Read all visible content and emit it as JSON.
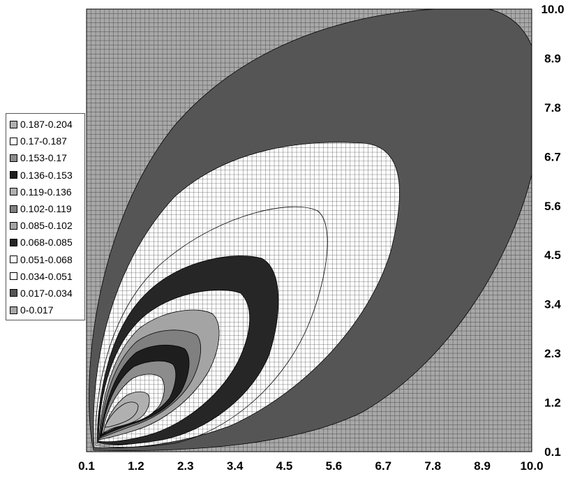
{
  "chart_data": {
    "type": "contour",
    "title": "",
    "xlabel": "",
    "ylabel": "",
    "x_ticks": [
      "0.1",
      "1.2",
      "2.3",
      "3.4",
      "4.5",
      "5.6",
      "6.7",
      "7.8",
      "8.9",
      "10.0"
    ],
    "y_ticks": [
      "10.0",
      "8.9",
      "7.8",
      "6.7",
      "5.6",
      "4.5",
      "3.4",
      "2.3",
      "1.2",
      "0.1"
    ],
    "xlim": [
      0.1,
      10.0
    ],
    "ylim": [
      0.1,
      10.0
    ],
    "y_axis_side": "right",
    "grid": true,
    "legend_position": "left",
    "series": [
      {
        "name": "0.187-0.204",
        "color": "#b0b0b0"
      },
      {
        "name": "0.17-0.187",
        "color": "#ffffff"
      },
      {
        "name": "0.153-0.17",
        "color": "#8c8c8c"
      },
      {
        "name": "0.136-0.153",
        "color": "#1e1e1e"
      },
      {
        "name": "0.119-0.136",
        "color": "#b0b0b0"
      },
      {
        "name": "0.102-0.119",
        "color": "#808080"
      },
      {
        "name": "0.085-0.102",
        "color": "#a4a4a4"
      },
      {
        "name": "0.068-0.085",
        "color": "#262626"
      },
      {
        "name": "0.051-0.068",
        "color": "#ffffff"
      },
      {
        "name": "0.034-0.051",
        "color": "#ffffff"
      },
      {
        "name": "0.017-0.034",
        "color": "#555555"
      },
      {
        "name": "0-0.017",
        "color": "#a8a8a8"
      }
    ]
  }
}
